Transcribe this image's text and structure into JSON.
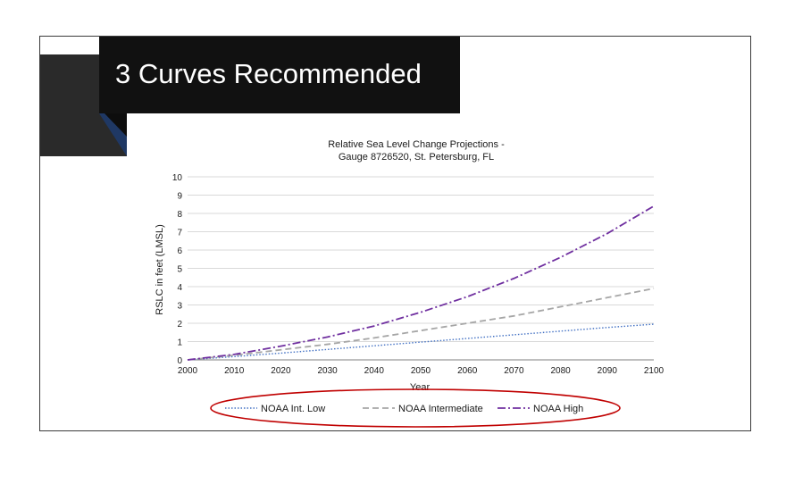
{
  "slide": {
    "title": "3 Curves Recommended"
  },
  "chart_data": {
    "type": "line",
    "title": "Relative Sea Level Change Projections -",
    "subtitle": "Gauge 8726520, St. Petersburg, FL",
    "xlabel": "Year",
    "ylabel": "RSLC in feet (LMSL)",
    "xlim": [
      2000,
      2100
    ],
    "ylim": [
      0,
      10
    ],
    "x_ticks": [
      2000,
      2010,
      2020,
      2030,
      2040,
      2050,
      2060,
      2070,
      2080,
      2090,
      2100
    ],
    "y_ticks": [
      0,
      1,
      2,
      3,
      4,
      5,
      6,
      7,
      8,
      9,
      10
    ],
    "grid": "horizontal",
    "legend_position": "bottom",
    "x": [
      2000,
      2010,
      2020,
      2030,
      2040,
      2050,
      2060,
      2070,
      2080,
      2090,
      2100
    ],
    "series": [
      {
        "name": "NOAA Int. Low",
        "color": "#4472c4",
        "dash": "dotted",
        "values": [
          0,
          0.18,
          0.37,
          0.57,
          0.77,
          0.97,
          1.17,
          1.37,
          1.57,
          1.77,
          1.95
        ]
      },
      {
        "name": "NOAA Intermediate",
        "color": "#a6a6a6",
        "dash": "dashed",
        "values": [
          0,
          0.25,
          0.55,
          0.85,
          1.2,
          1.6,
          2.0,
          2.4,
          2.9,
          3.4,
          3.9
        ]
      },
      {
        "name": "NOAA High",
        "color": "#7030a0",
        "dash": "dash-dot",
        "values": [
          0,
          0.3,
          0.75,
          1.25,
          1.85,
          2.6,
          3.45,
          4.45,
          5.6,
          6.9,
          8.4
        ]
      }
    ],
    "legend_highlight_color": "#c00000"
  }
}
